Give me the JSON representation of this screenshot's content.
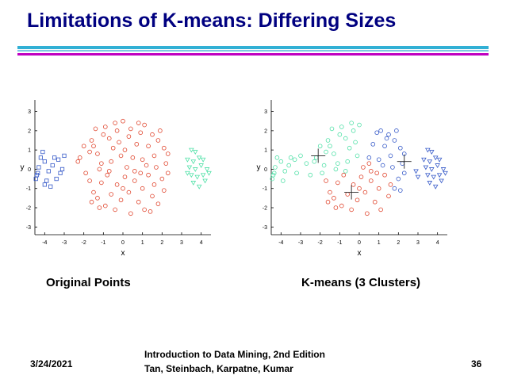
{
  "slide": {
    "title": "Limitations of K-means: Differing Sizes",
    "caption_left": "Original Points",
    "caption_right": "K-means (3 Clusters)",
    "footer_date": "3/24/2021",
    "footer_line1": "Introduction to Data Mining, 2nd Edition",
    "footer_line2": "Tan, Steinbach, Karpatne, Kumar",
    "footer_page": "36"
  },
  "colors": {
    "title": "#000080",
    "red": "#e0442c",
    "blue": "#3458c8",
    "green": "#4ee0a6"
  },
  "chart_data": [
    {
      "type": "scatter",
      "title": "",
      "xlabel": "x",
      "ylabel": "y",
      "xlim": [
        -4.5,
        4.5
      ],
      "ylim": [
        -3.4,
        3.6
      ],
      "xticks": [
        "-4",
        "-3",
        "-2",
        "-1",
        "0",
        "1",
        "2",
        "3",
        "4"
      ],
      "yticks": [
        "-3",
        "-2",
        "-1",
        "0",
        "1",
        "2",
        "3"
      ],
      "series": [
        {
          "name": "",
          "marker": "square",
          "color": "#3458c8",
          "points": [
            [
              -4.4,
              -0.3
            ],
            [
              -4.45,
              -0.5
            ],
            [
              -4.35,
              -0.2
            ],
            [
              -4.2,
              0.6
            ],
            [
              -4.0,
              0.4
            ],
            [
              -4.3,
              0.1
            ],
            [
              -3.8,
              -0.1
            ],
            [
              -4.0,
              -0.8
            ],
            [
              -3.9,
              -0.6
            ],
            [
              -3.5,
              0.6
            ],
            [
              -3.3,
              0.5
            ],
            [
              -3.6,
              0.2
            ],
            [
              -3.2,
              -0.2
            ],
            [
              -3.0,
              0.7
            ],
            [
              -3.1,
              0.0
            ],
            [
              -3.7,
              -0.9
            ],
            [
              -3.4,
              -0.5
            ],
            [
              -4.1,
              0.9
            ]
          ]
        },
        {
          "name": "",
          "marker": "circle",
          "color": "#e0442c",
          "points": [
            [
              -2.2,
              0.6
            ],
            [
              -2.3,
              0.4
            ],
            [
              -1.7,
              0.9
            ],
            [
              -1.6,
              1.5
            ],
            [
              -1.5,
              1.2
            ],
            [
              -1.3,
              0.8
            ],
            [
              -1.1,
              0.3
            ],
            [
              -1.0,
              1.8
            ],
            [
              -0.9,
              2.2
            ],
            [
              -0.7,
              1.6
            ],
            [
              -0.6,
              0.4
            ],
            [
              -0.5,
              1.1
            ],
            [
              -0.3,
              2.0
            ],
            [
              -0.2,
              1.4
            ],
            [
              0.0,
              2.5
            ],
            [
              0.1,
              1.0
            ],
            [
              0.3,
              1.7
            ],
            [
              0.4,
              2.1
            ],
            [
              0.5,
              0.6
            ],
            [
              0.7,
              1.3
            ],
            [
              0.9,
              1.9
            ],
            [
              1.0,
              0.5
            ],
            [
              1.1,
              2.3
            ],
            [
              1.3,
              1.2
            ],
            [
              1.5,
              1.8
            ],
            [
              1.6,
              0.7
            ],
            [
              1.8,
              1.5
            ],
            [
              1.9,
              2.0
            ],
            [
              2.1,
              1.1
            ],
            [
              2.2,
              0.3
            ],
            [
              2.3,
              0.8
            ],
            [
              -1.9,
              -0.2
            ],
            [
              -1.7,
              -0.6
            ],
            [
              -1.5,
              -1.2
            ],
            [
              -1.3,
              -1.5
            ],
            [
              -1.1,
              -0.7
            ],
            [
              -0.9,
              -1.9
            ],
            [
              -0.8,
              -0.3
            ],
            [
              -0.6,
              -1.3
            ],
            [
              -0.4,
              -2.1
            ],
            [
              -0.3,
              -0.8
            ],
            [
              -0.1,
              -1.6
            ],
            [
              0.1,
              -0.4
            ],
            [
              0.3,
              -1.2
            ],
            [
              0.4,
              -2.3
            ],
            [
              0.6,
              -0.6
            ],
            [
              0.8,
              -1.7
            ],
            [
              1.0,
              -1.0
            ],
            [
              1.1,
              -2.1
            ],
            [
              1.3,
              -0.3
            ],
            [
              1.5,
              -1.4
            ],
            [
              1.6,
              -0.8
            ],
            [
              1.8,
              -1.8
            ],
            [
              2.0,
              -0.5
            ],
            [
              2.1,
              -1.1
            ],
            [
              2.3,
              -0.2
            ],
            [
              -1.2,
              0.0
            ],
            [
              -0.7,
              -0.1
            ],
            [
              0.2,
              0.1
            ],
            [
              0.9,
              -0.2
            ],
            [
              1.7,
              0.1
            ],
            [
              -2.0,
              1.2
            ],
            [
              -1.4,
              2.1
            ],
            [
              -0.1,
              0.7
            ],
            [
              0.6,
              -0.1
            ],
            [
              1.2,
              0.2
            ],
            [
              -0.4,
              2.4
            ],
            [
              0.8,
              2.4
            ],
            [
              -1.6,
              -1.7
            ],
            [
              0.0,
              -1.0
            ],
            [
              -1.2,
              -2.0
            ],
            [
              1.4,
              -2.2
            ]
          ]
        },
        {
          "name": "",
          "marker": "triangle",
          "color": "#4ee0a6",
          "points": [
            [
              3.5,
              1.0
            ],
            [
              3.7,
              0.9
            ],
            [
              3.3,
              0.5
            ],
            [
              3.6,
              0.4
            ],
            [
              3.9,
              0.6
            ],
            [
              4.1,
              0.5
            ],
            [
              3.4,
              0.1
            ],
            [
              3.7,
              0.0
            ],
            [
              4.0,
              0.2
            ],
            [
              4.3,
              0.0
            ],
            [
              3.5,
              -0.3
            ],
            [
              3.8,
              -0.4
            ],
            [
              4.1,
              -0.3
            ],
            [
              4.4,
              -0.2
            ],
            [
              3.6,
              -0.7
            ],
            [
              3.9,
              -0.9
            ],
            [
              4.2,
              -0.6
            ],
            [
              3.3,
              -0.2
            ]
          ]
        }
      ]
    },
    {
      "type": "scatter",
      "title": "",
      "xlabel": "x",
      "ylabel": "y",
      "xlim": [
        -4.5,
        4.5
      ],
      "ylim": [
        -3.4,
        3.6
      ],
      "xticks": [
        "-4",
        "-3",
        "-2",
        "-1",
        "0",
        "1",
        "2",
        "3",
        "4"
      ],
      "yticks": [
        "-3",
        "-2",
        "-1",
        "0",
        "1",
        "2",
        "3"
      ],
      "series": [
        {
          "name": "",
          "marker": "circle",
          "color": "#4ee0a6",
          "points": [
            [
              -4.4,
              -0.3
            ],
            [
              -4.45,
              -0.5
            ],
            [
              -4.35,
              -0.2
            ],
            [
              -4.2,
              0.6
            ],
            [
              -4.0,
              0.4
            ],
            [
              -4.3,
              0.1
            ],
            [
              -3.8,
              -0.1
            ],
            [
              -3.9,
              -0.6
            ],
            [
              -3.5,
              0.6
            ],
            [
              -3.3,
              0.5
            ],
            [
              -3.6,
              0.2
            ],
            [
              -3.2,
              -0.2
            ],
            [
              -3.0,
              0.7
            ],
            [
              -2.2,
              0.6
            ],
            [
              -2.3,
              0.4
            ],
            [
              -1.7,
              0.9
            ],
            [
              -1.6,
              1.5
            ],
            [
              -1.5,
              1.2
            ],
            [
              -1.3,
              0.8
            ],
            [
              -1.1,
              0.3
            ],
            [
              -1.0,
              1.8
            ],
            [
              -0.9,
              2.2
            ],
            [
              -0.7,
              1.6
            ],
            [
              -0.6,
              0.4
            ],
            [
              -0.5,
              1.1
            ],
            [
              -0.3,
              2.0
            ],
            [
              -0.2,
              1.4
            ],
            [
              0.0,
              2.3
            ],
            [
              -1.9,
              -0.2
            ],
            [
              -1.2,
              0.0
            ],
            [
              -0.7,
              -0.1
            ],
            [
              -2.0,
              1.2
            ],
            [
              -1.4,
              2.1
            ],
            [
              -0.4,
              2.4
            ],
            [
              -0.1,
              0.7
            ],
            [
              -1.8,
              0.2
            ],
            [
              -2.5,
              -0.3
            ],
            [
              -2.7,
              0.3
            ]
          ]
        },
        {
          "name": "",
          "marker": "circle",
          "color": "#e0442c",
          "points": [
            [
              -1.7,
              -0.6
            ],
            [
              -1.5,
              -1.2
            ],
            [
              -1.3,
              -1.5
            ],
            [
              -1.1,
              -0.7
            ],
            [
              -0.9,
              -1.9
            ],
            [
              -0.8,
              -0.3
            ],
            [
              -0.6,
              -1.3
            ],
            [
              -0.4,
              -2.1
            ],
            [
              -0.3,
              -0.8
            ],
            [
              -0.1,
              -1.6
            ],
            [
              0.1,
              -0.4
            ],
            [
              0.3,
              -1.2
            ],
            [
              0.4,
              -2.3
            ],
            [
              0.6,
              -0.6
            ],
            [
              0.8,
              -1.7
            ],
            [
              1.0,
              -1.0
            ],
            [
              1.1,
              -2.1
            ],
            [
              1.3,
              -0.3
            ],
            [
              1.5,
              -1.4
            ],
            [
              1.6,
              -0.8
            ],
            [
              0.0,
              -1.0
            ],
            [
              -1.2,
              -2.0
            ],
            [
              -1.6,
              -1.7
            ],
            [
              0.2,
              0.1
            ],
            [
              0.6,
              -0.1
            ],
            [
              0.9,
              -0.2
            ],
            [
              0.5,
              0.3
            ]
          ]
        },
        {
          "name": "",
          "marker": "circle",
          "color": "#3458c8",
          "points": [
            [
              0.5,
              0.6
            ],
            [
              0.7,
              1.3
            ],
            [
              0.9,
              1.9
            ],
            [
              1.0,
              0.5
            ],
            [
              1.1,
              2.0
            ],
            [
              1.3,
              1.2
            ],
            [
              1.5,
              1.8
            ],
            [
              1.6,
              0.7
            ],
            [
              1.8,
              1.5
            ],
            [
              1.9,
              2.0
            ],
            [
              2.1,
              1.1
            ],
            [
              2.2,
              0.3
            ],
            [
              2.3,
              0.8
            ],
            [
              2.0,
              -0.5
            ],
            [
              2.1,
              -1.1
            ],
            [
              2.3,
              -0.2
            ],
            [
              1.8,
              -1.0
            ],
            [
              1.7,
              0.1
            ],
            [
              1.2,
              0.2
            ],
            [
              1.4,
              1.6
            ]
          ]
        },
        {
          "name": "",
          "marker": "triangle",
          "color": "#3458c8",
          "points": [
            [
              3.5,
              1.0
            ],
            [
              3.7,
              0.9
            ],
            [
              3.3,
              0.5
            ],
            [
              3.6,
              0.4
            ],
            [
              3.9,
              0.6
            ],
            [
              4.1,
              0.5
            ],
            [
              3.4,
              0.1
            ],
            [
              3.7,
              0.0
            ],
            [
              4.0,
              0.2
            ],
            [
              4.3,
              0.0
            ],
            [
              3.5,
              -0.3
            ],
            [
              3.8,
              -0.4
            ],
            [
              4.1,
              -0.3
            ],
            [
              4.4,
              -0.2
            ],
            [
              3.6,
              -0.7
            ],
            [
              3.9,
              -0.9
            ],
            [
              4.2,
              -0.6
            ],
            [
              2.9,
              -0.1
            ],
            [
              3.0,
              -0.4
            ]
          ]
        }
      ],
      "centroids": [
        [
          -2.1,
          0.7
        ],
        [
          -0.4,
          -1.2
        ],
        [
          2.3,
          0.4
        ]
      ]
    }
  ]
}
